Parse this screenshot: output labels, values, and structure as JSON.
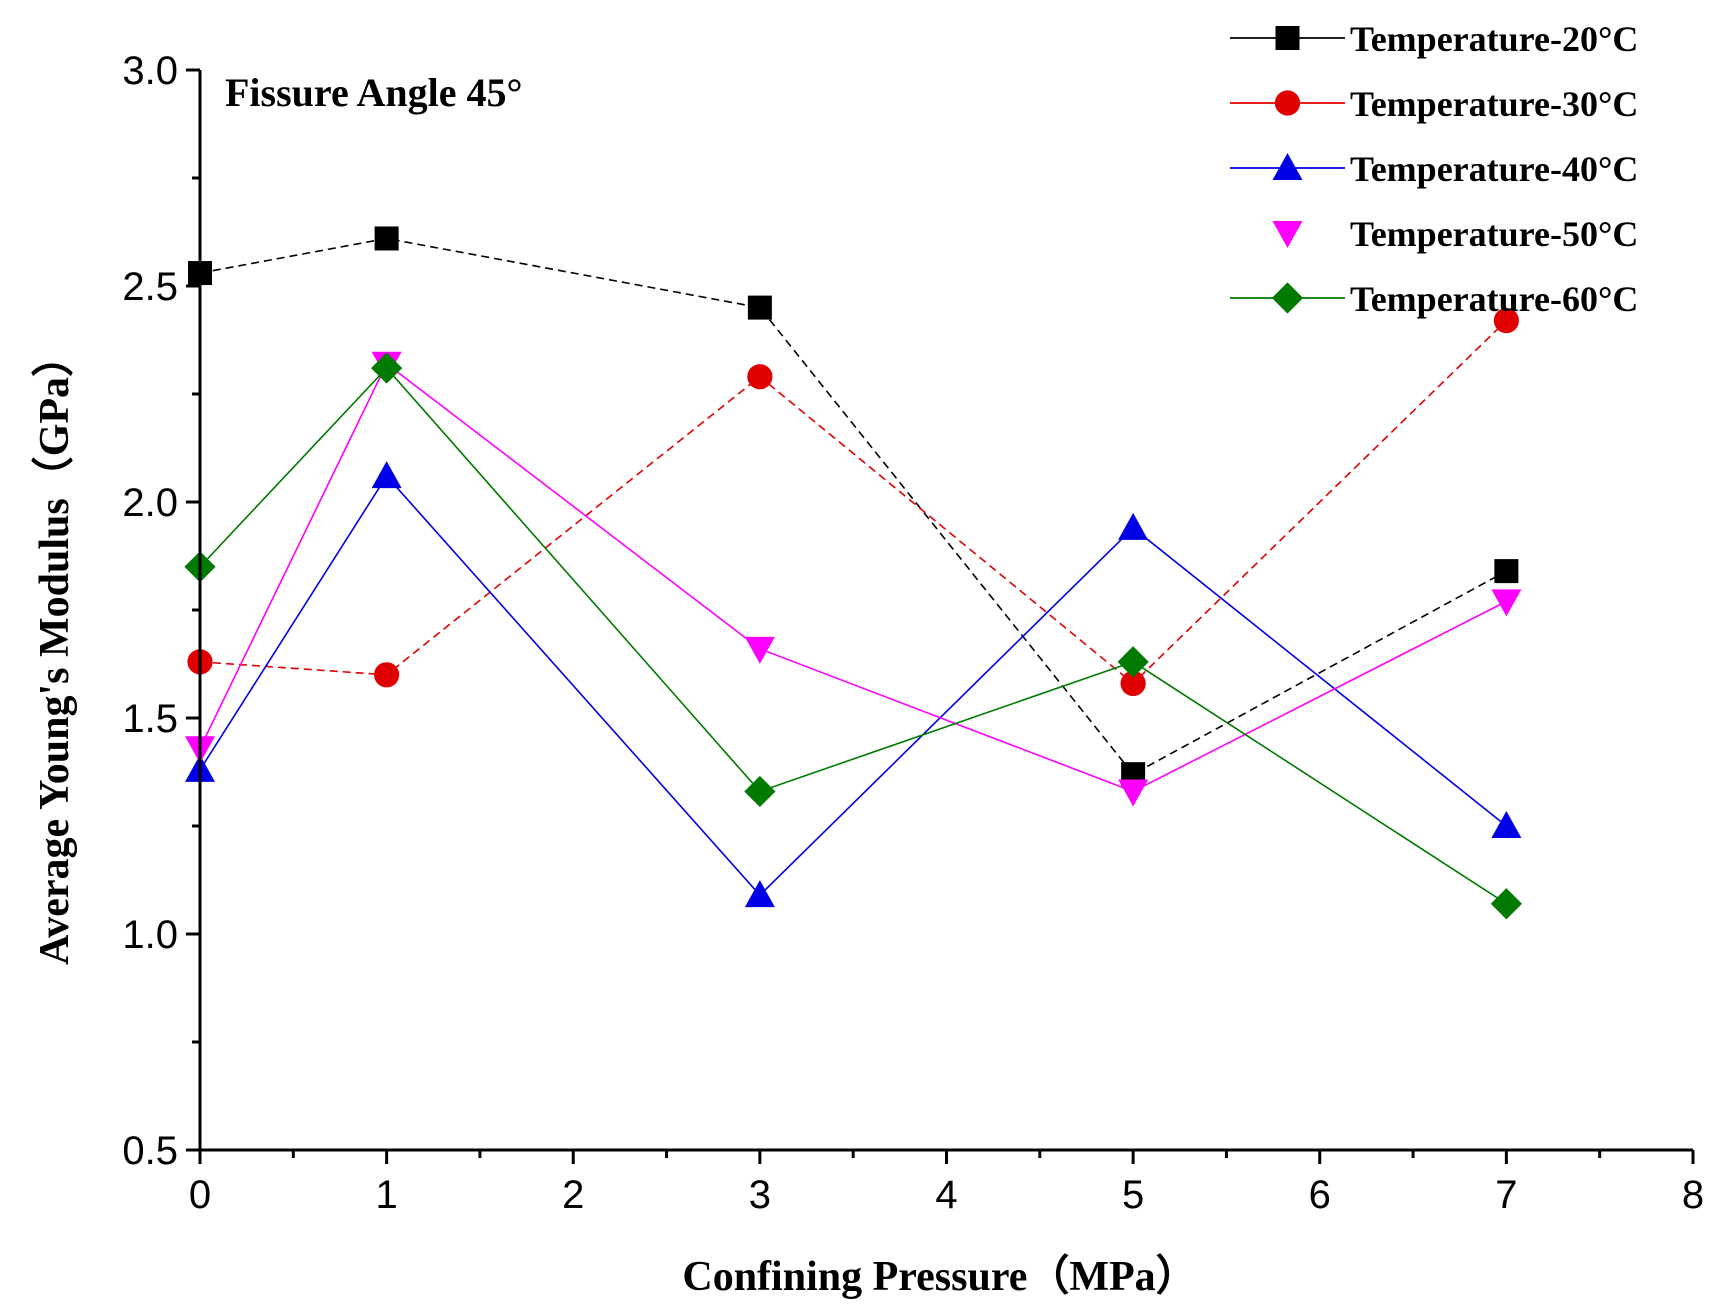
{
  "chart_data": {
    "type": "line",
    "title": "",
    "annotation": "Fissure Angle 45°",
    "xlabel": "Confining Pressure（MPa）",
    "ylabel": "Average Young's Modulus（GPa）",
    "xlim": [
      0,
      8
    ],
    "ylim": [
      0.5,
      3.0
    ],
    "x_ticks": [
      "0",
      "1",
      "2",
      "3",
      "4",
      "5",
      "6",
      "7",
      "8"
    ],
    "y_ticks": [
      "0.5",
      "1.0",
      "1.5",
      "2.0",
      "2.5",
      "3.0"
    ],
    "grid": false,
    "legend_position": "top-right",
    "x": [
      0,
      1,
      3,
      5,
      7
    ],
    "series": [
      {
        "name": "Temperature-20°C",
        "color": "#000000",
        "marker": "square",
        "values": [
          2.53,
          2.61,
          2.45,
          1.37,
          1.84
        ]
      },
      {
        "name": "Temperature-30°C",
        "color": "#e00000",
        "marker": "circle",
        "values": [
          1.63,
          1.6,
          2.29,
          1.58,
          2.42
        ]
      },
      {
        "name": "Temperature-40°C",
        "color": "#0000e6",
        "marker": "triangle-up",
        "values": [
          1.38,
          2.06,
          1.09,
          1.94,
          1.25
        ]
      },
      {
        "name": "Temperature-50°C",
        "color": "#ff00ff",
        "marker": "triangle-down",
        "values": [
          1.43,
          2.32,
          1.66,
          1.33,
          1.77
        ]
      },
      {
        "name": "Temperature-60°C",
        "color": "#007a00",
        "marker": "diamond",
        "values": [
          1.85,
          2.31,
          1.33,
          1.63,
          1.07
        ]
      }
    ]
  }
}
